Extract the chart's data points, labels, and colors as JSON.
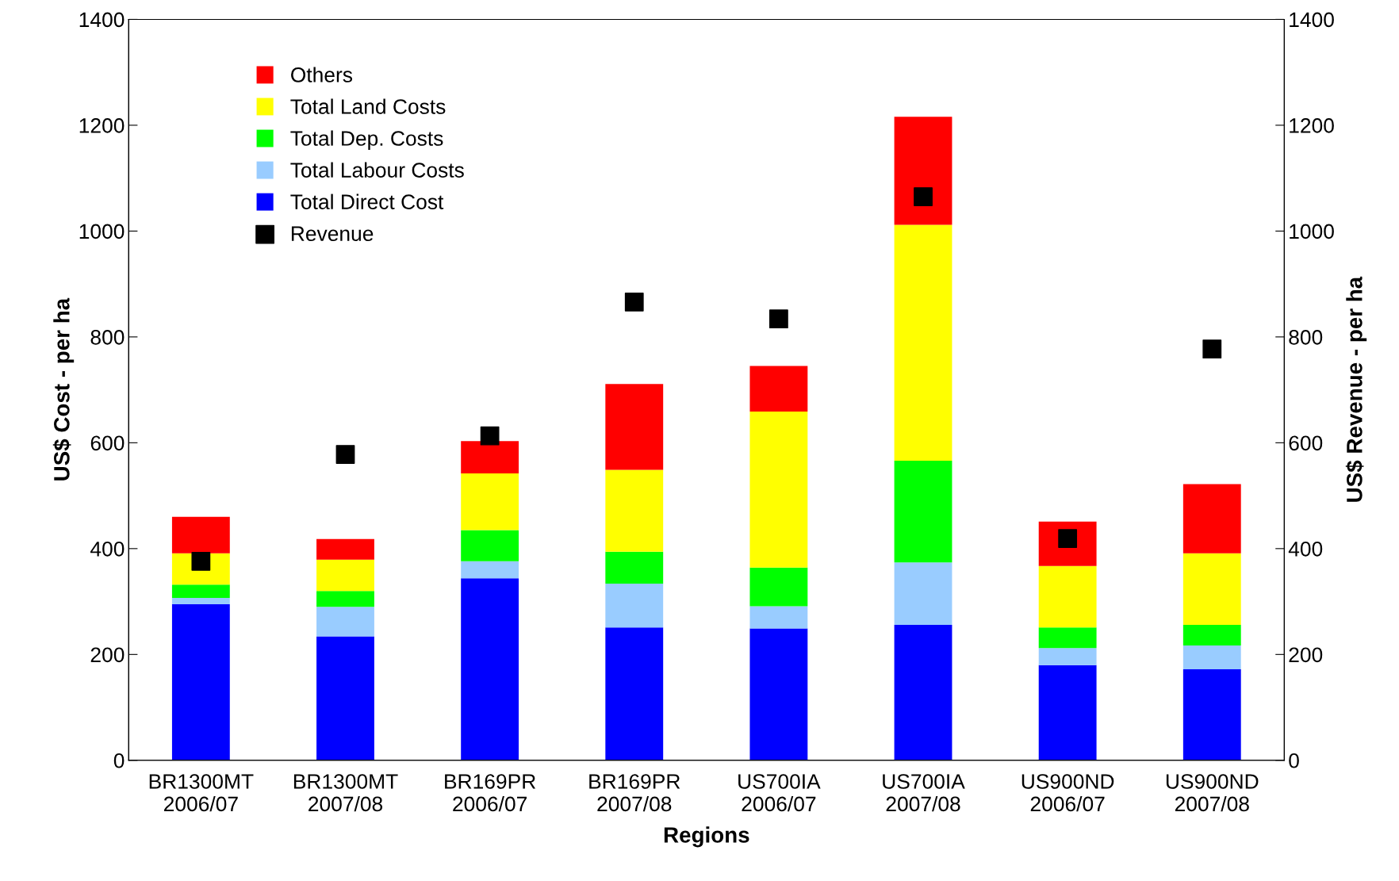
{
  "chart_data": {
    "type": "bar",
    "stacked": true,
    "xlabel": "Regions",
    "ylabel": "US$ Cost - per ha",
    "y2label": "US$ Revenue - per ha",
    "categories": [
      "BR1300MT\n2006/07",
      "BR1300MT\n2007/08",
      "BR169PR\n2006/07",
      "BR169PR\n2007/08",
      "US700IA\n2006/07",
      "US700IA\n2007/08",
      "US900ND\n2006/07",
      "US900ND\n2007/08"
    ],
    "series": [
      {
        "name": "Total Direct Cost",
        "color": "#0000ff",
        "values": [
          295,
          234,
          344,
          251,
          249,
          256,
          180,
          172
        ]
      },
      {
        "name": "Total Labour Costs",
        "color": "#99ccff",
        "values": [
          12,
          56,
          32,
          83,
          42,
          118,
          32,
          45
        ]
      },
      {
        "name": "Total Dep. Costs",
        "color": "#00ff00",
        "values": [
          25,
          30,
          59,
          60,
          73,
          192,
          39,
          39
        ]
      },
      {
        "name": "Total Land Costs",
        "color": "#ffff00",
        "values": [
          59,
          59,
          107,
          155,
          295,
          446,
          116,
          135
        ]
      },
      {
        "name": "Others",
        "color": "#ff0000",
        "values": [
          69,
          39,
          61,
          162,
          86,
          204,
          84,
          131
        ]
      },
      {
        "name": "Revenue",
        "type": "scatter",
        "axis": "y2",
        "marker": "square",
        "color": "#000000",
        "values": [
          376,
          578,
          613,
          866,
          834,
          1065,
          419,
          777
        ]
      }
    ],
    "ylim": [
      0,
      1400
    ],
    "yticks": [
      0,
      200,
      400,
      600,
      800,
      1000,
      1200,
      1400
    ],
    "y2lim": [
      0,
      1400
    ],
    "y2ticks": [
      0,
      200,
      400,
      600,
      800,
      1000,
      1200,
      1400
    ],
    "grid": false,
    "legend": "top left"
  }
}
